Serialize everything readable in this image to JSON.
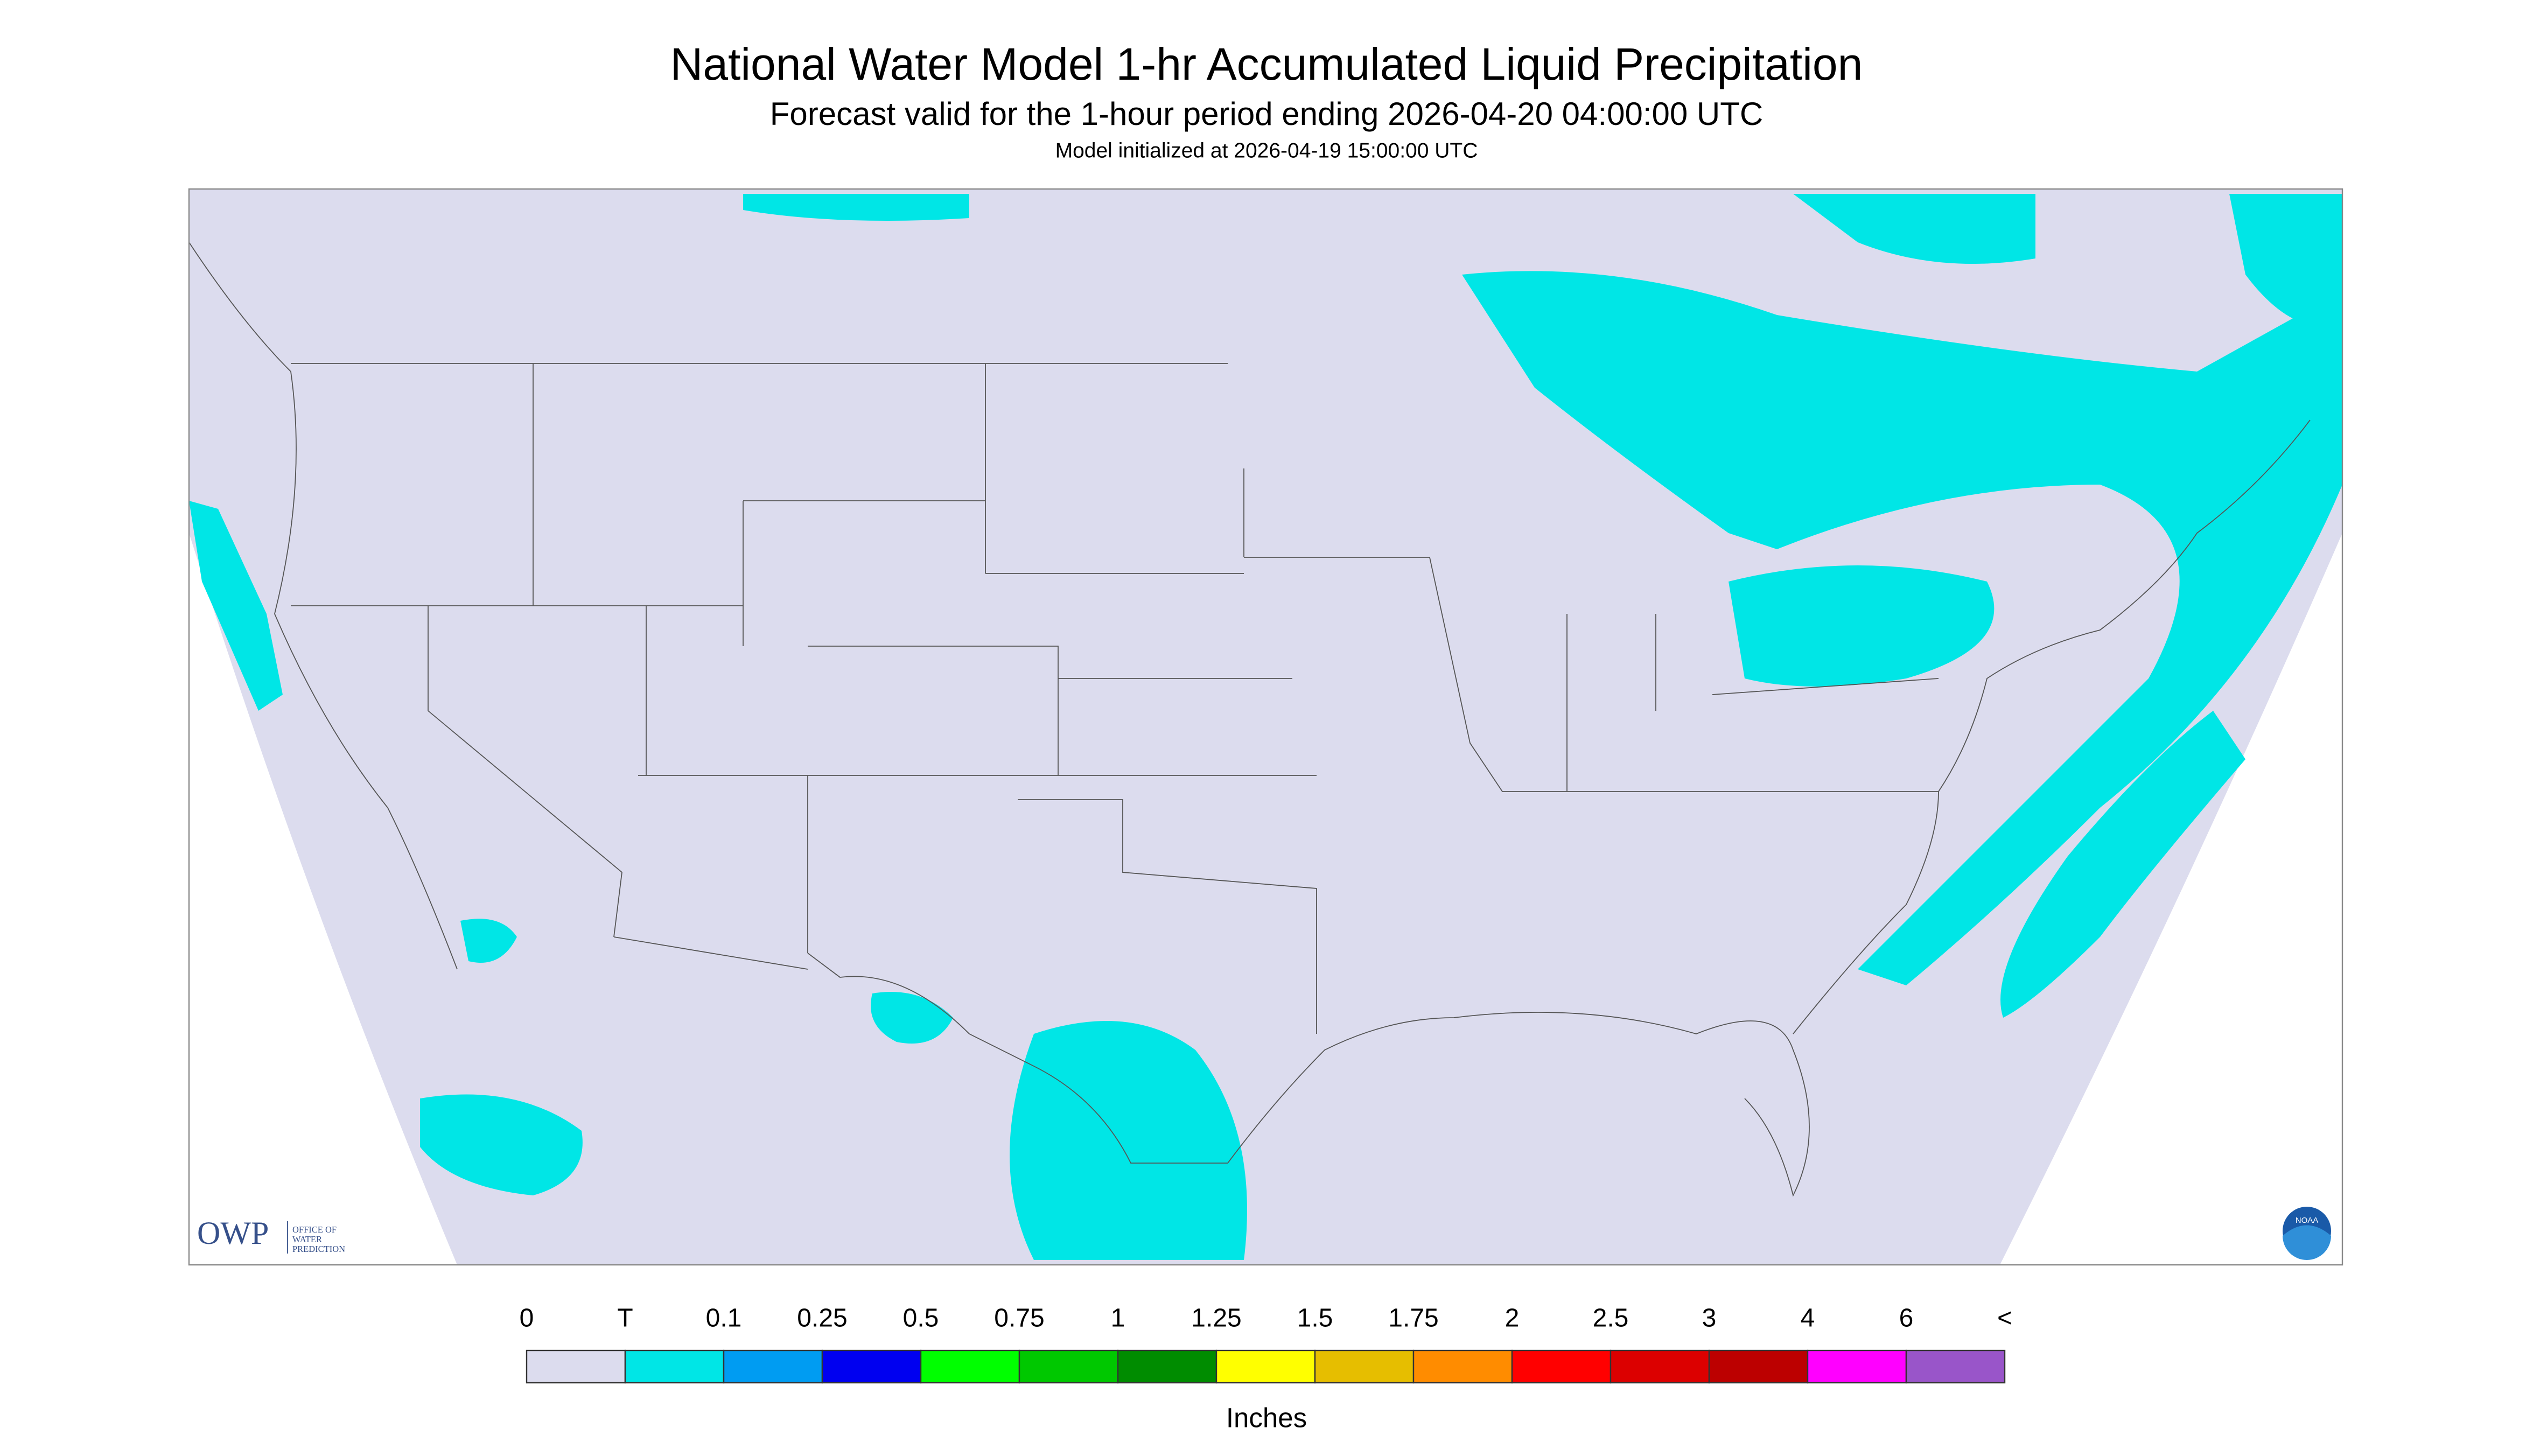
{
  "header": {
    "title": "National Water Model 1-hr Accumulated Liquid Precipitation",
    "subtitle": "Forecast valid for the 1-hour period ending 2026-04-20 04:00:00 UTC",
    "init": "Model initialized at 2026-04-19 15:00:00 UTC"
  },
  "logo": {
    "owp": "OWP",
    "office": [
      "OFFICE OF",
      "WATER",
      "PREDICTION"
    ],
    "noaa": "NOAA"
  },
  "legend": {
    "labels": [
      "0",
      "T",
      "0.1",
      "0.25",
      "0.5",
      "0.75",
      "1",
      "1.25",
      "1.5",
      "1.75",
      "2",
      "2.5",
      "3",
      "4",
      "6",
      "<"
    ],
    "colors": [
      "#dcdcee",
      "#00e6e6",
      "#009cf2",
      "#0000f0",
      "#00ff00",
      "#00c800",
      "#008c00",
      "#ffff00",
      "#e6be00",
      "#ff8c00",
      "#ff0000",
      "#dc0000",
      "#bc0000",
      "#ff00ff",
      "#9955c9"
    ],
    "unit": "Inches"
  }
}
